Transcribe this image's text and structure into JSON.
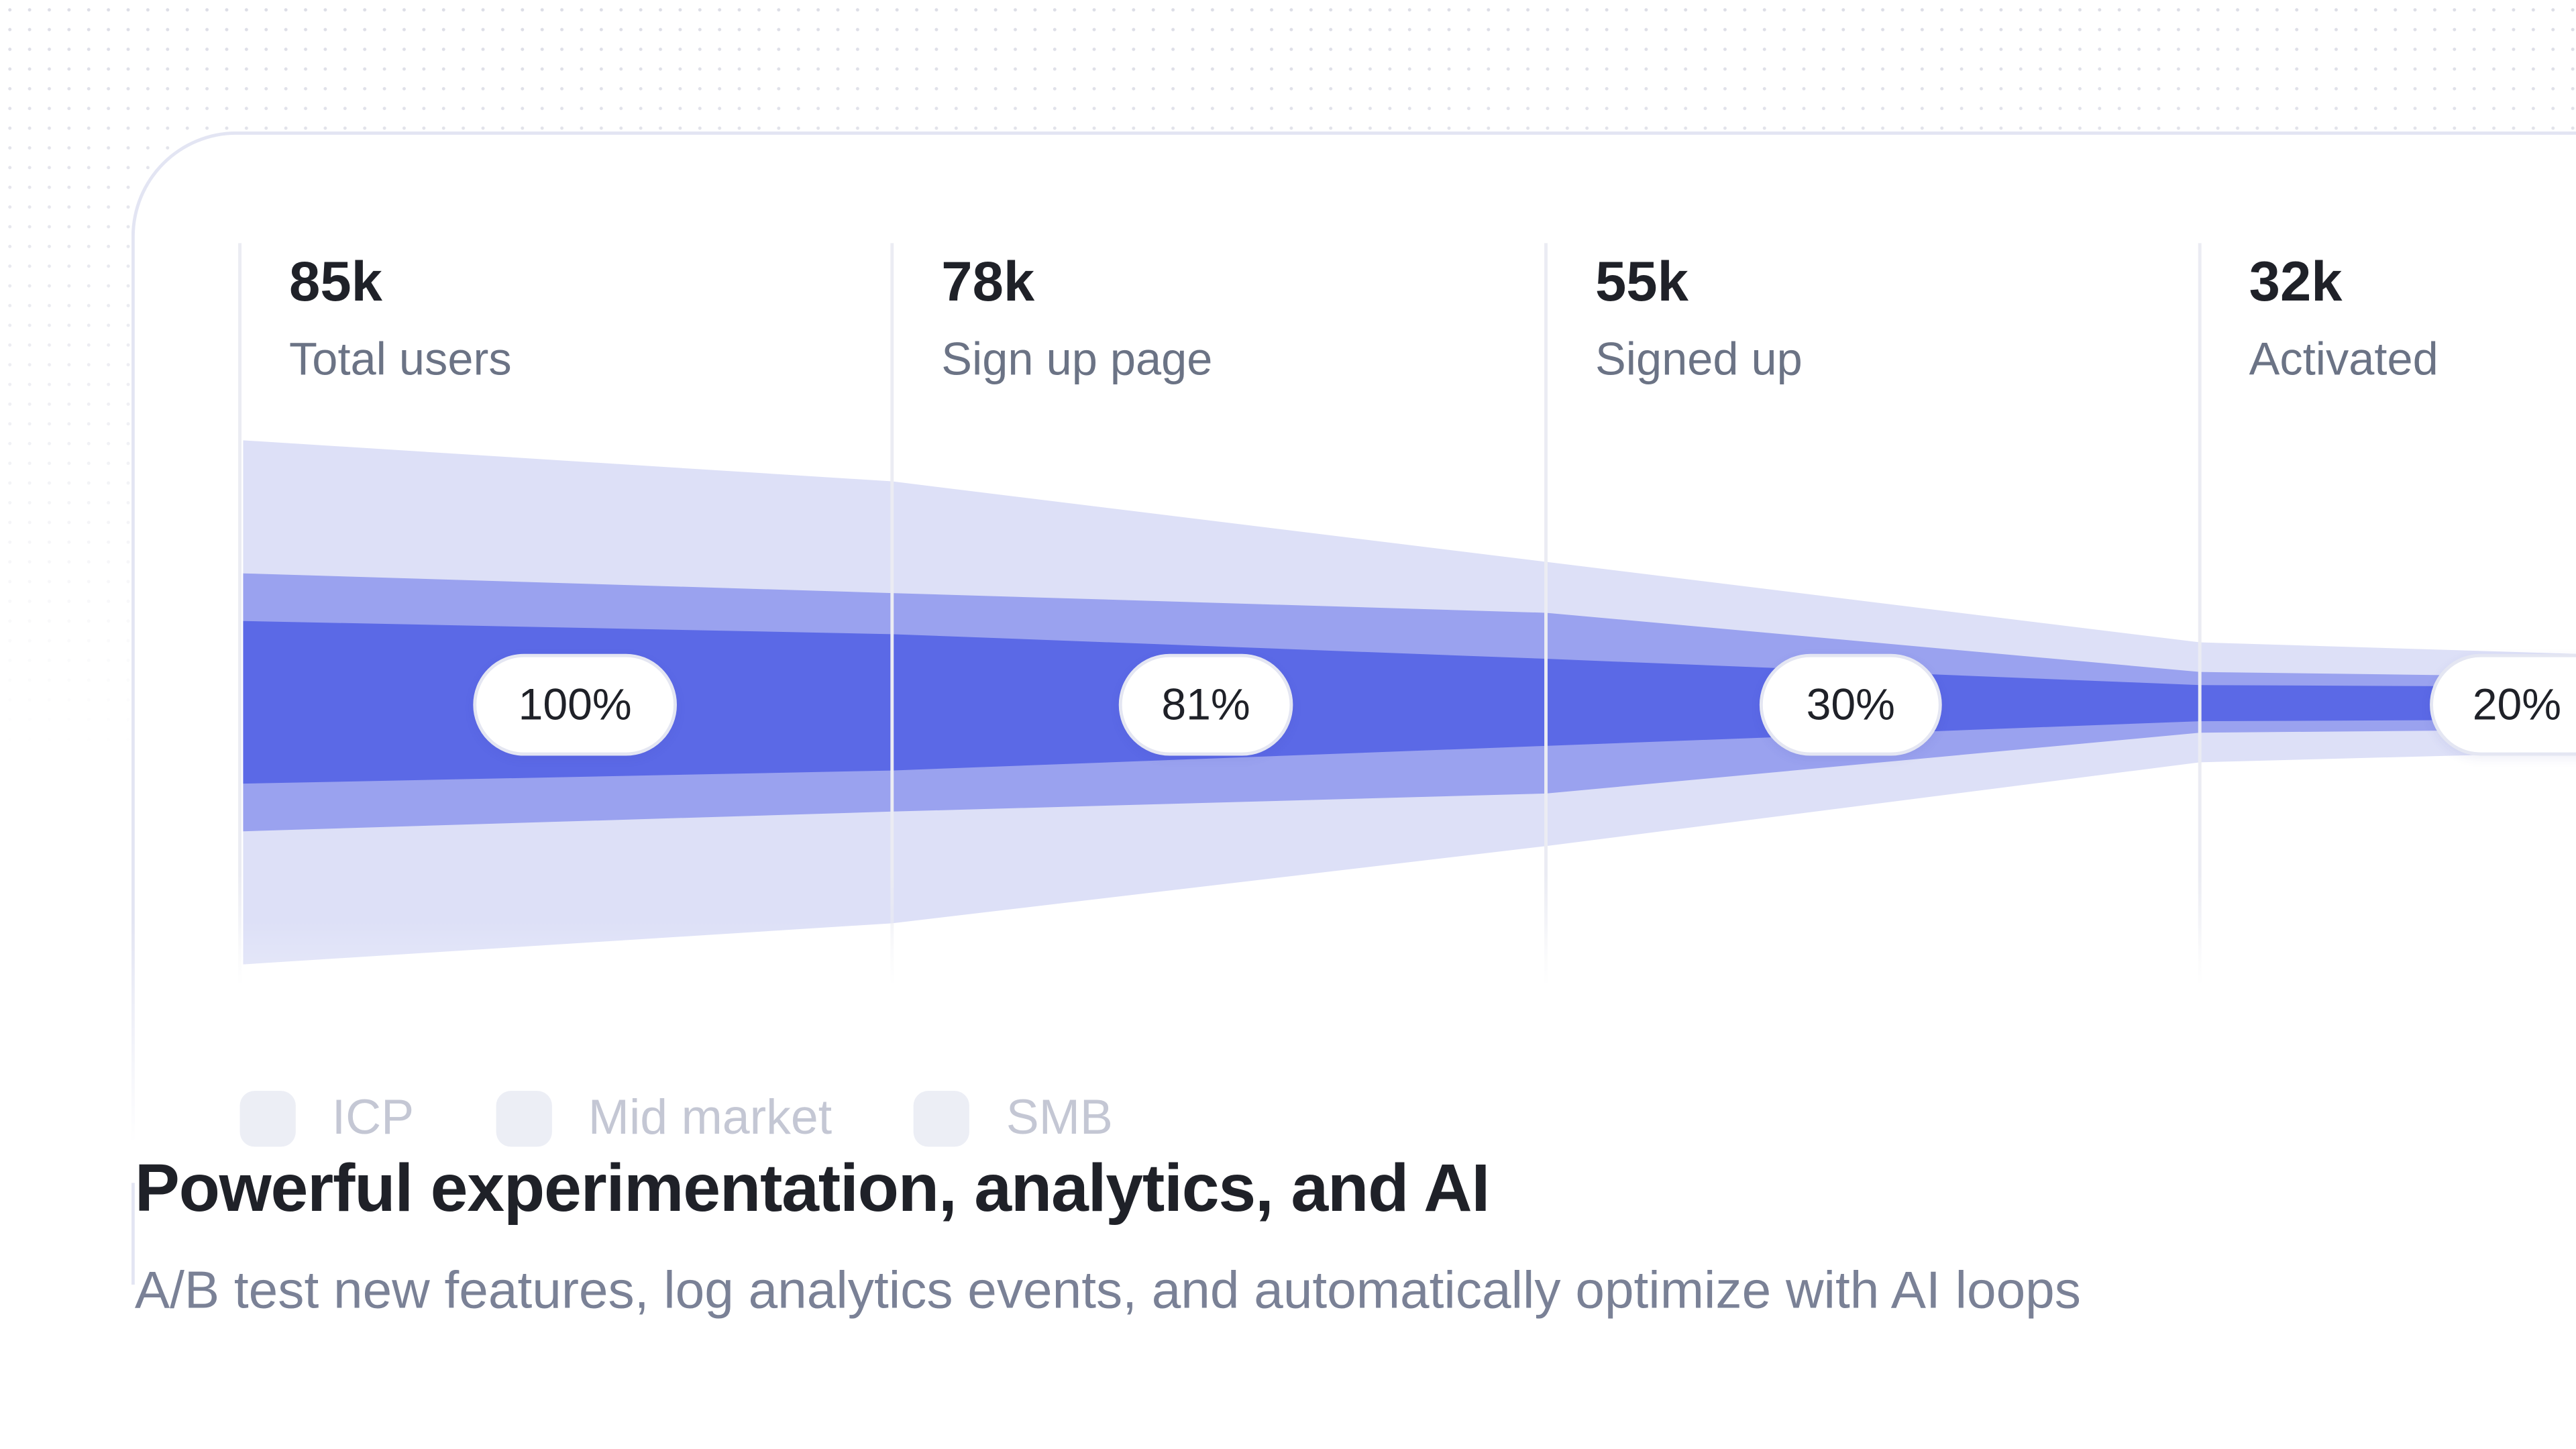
{
  "colors": {
    "outer": "#bcc1f5",
    "middle": "#9aa2ef",
    "inner": "#5b69e6",
    "border": "#e3e5f3"
  },
  "chart_data": {
    "type": "funnel",
    "stages": [
      {
        "value": "85k",
        "label": "Total users",
        "percent": "100%"
      },
      {
        "value": "78k",
        "label": "Sign up page",
        "percent": "81%"
      },
      {
        "value": "55k",
        "label": "Signed up",
        "percent": "30%"
      },
      {
        "value": "32k",
        "label": "Activated",
        "percent": "20%"
      }
    ],
    "legend": [
      "ICP",
      "Mid market",
      "SMB"
    ]
  },
  "heading": "Powerful experimentation, analytics, and AI",
  "subheading": "A/B test new features, log analytics events, and automatically optimize with AI loops"
}
